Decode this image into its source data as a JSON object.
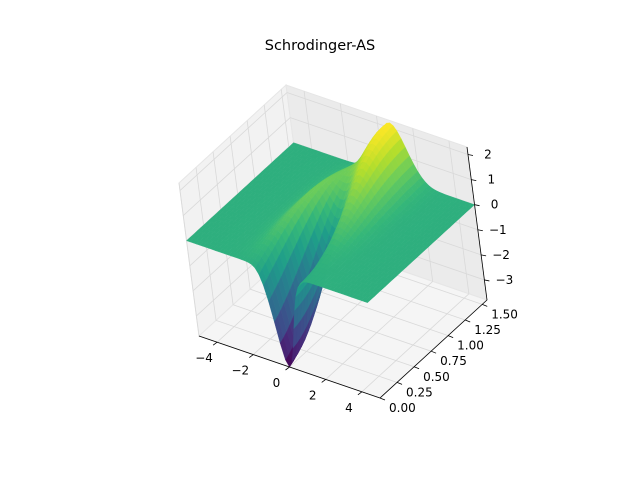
{
  "chart_data": {
    "type": "surface",
    "title": "Schrodinger-AS",
    "colormap": "viridis",
    "x": {
      "range": [
        -5,
        5
      ],
      "ticks": [
        -4,
        -2,
        0,
        2,
        4
      ],
      "tick_labels": [
        "−4",
        "−2",
        "0",
        "2",
        "4"
      ],
      "label": ""
    },
    "y": {
      "range": [
        0,
        1.57
      ],
      "ticks": [
        0.0,
        0.25,
        0.5,
        0.75,
        1.0,
        1.25,
        1.5
      ],
      "tick_labels": [
        "0.00",
        "0.25",
        "0.50",
        "0.75",
        "1.00",
        "1.25",
        "1.50"
      ],
      "label": ""
    },
    "z": {
      "range": [
        -3.8,
        2.3
      ],
      "ticks": [
        -3,
        -2,
        -1,
        0,
        1,
        2
      ],
      "tick_labels": [
        "−3",
        "−2",
        "−1",
        "0",
        "1",
        "2"
      ],
      "label": ""
    },
    "surface_samples": [
      {
        "x": 0.0,
        "y": 0.0,
        "z": -3.8
      },
      {
        "x": -0.8,
        "y": 0.35,
        "z": 0.8
      },
      {
        "x": 0.7,
        "y": 1.4,
        "z": 2.2
      },
      {
        "x": -4.5,
        "y": 0.8,
        "z": 0.0
      },
      {
        "x": 4.5,
        "y": 0.8,
        "z": 0.0
      }
    ],
    "grid": true,
    "colors": {
      "pane": "#f2f2f2",
      "grid": "#d9d9d9",
      "axis": "#000000"
    }
  }
}
